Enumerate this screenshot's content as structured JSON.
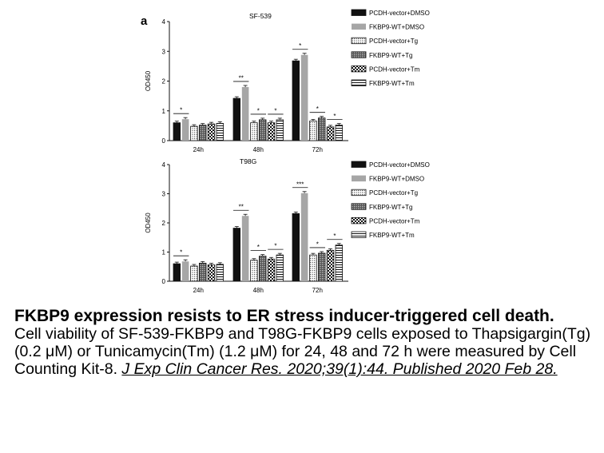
{
  "panel_label": "a",
  "colors": {
    "solid_black": "#111111",
    "solid_gray": "#a6a6a6",
    "stroke": "#111111"
  },
  "chart_data": [
    {
      "type": "bar",
      "title": "SF-539",
      "xlabel": "",
      "ylabel": "OD450",
      "ylim": [
        0,
        4
      ],
      "yticks": [
        "0",
        "1",
        "2",
        "3",
        "4"
      ],
      "categories": [
        "24h",
        "48h",
        "72h"
      ],
      "legend_position": "right",
      "series": [
        {
          "name": "PCDH-vector+DMSO",
          "values": [
            0.6,
            1.42,
            2.68
          ],
          "pattern": "solid-black"
        },
        {
          "name": "FKBP9-WT+DMSO",
          "values": [
            0.72,
            1.8,
            2.88
          ],
          "pattern": "solid-gray"
        },
        {
          "name": "PCDH-vector+Tg",
          "values": [
            0.48,
            0.6,
            0.66
          ],
          "pattern": "dots"
        },
        {
          "name": "FKBP9-WT+Tg",
          "values": [
            0.52,
            0.7,
            0.76
          ],
          "pattern": "dense-grid"
        },
        {
          "name": "PCDH-vector+Tm",
          "values": [
            0.56,
            0.6,
            0.46
          ],
          "pattern": "checker"
        },
        {
          "name": "FKBP9-WT+Tm",
          "values": [
            0.58,
            0.7,
            0.52
          ],
          "pattern": "hlines"
        }
      ],
      "annotations": [
        {
          "group": 0,
          "from": 0,
          "to": 1,
          "text": "*"
        },
        {
          "group": 1,
          "from": 0,
          "to": 1,
          "text": "**"
        },
        {
          "group": 1,
          "from": 2,
          "to": 3,
          "text": "*"
        },
        {
          "group": 1,
          "from": 4,
          "to": 5,
          "text": "*"
        },
        {
          "group": 2,
          "from": 0,
          "to": 1,
          "text": "*"
        },
        {
          "group": 2,
          "from": 2,
          "to": 3,
          "text": "*"
        },
        {
          "group": 2,
          "from": 4,
          "to": 5,
          "text": "*"
        }
      ]
    },
    {
      "type": "bar",
      "title": "T98G",
      "xlabel": "",
      "ylabel": "OD450",
      "ylim": [
        0,
        4
      ],
      "yticks": [
        "0",
        "1",
        "2",
        "3",
        "4"
      ],
      "categories": [
        "24h",
        "48h",
        "72h"
      ],
      "legend_position": "right",
      "series": [
        {
          "name": "PCDH-vector+DMSO",
          "values": [
            0.6,
            1.82,
            2.32
          ],
          "pattern": "solid-black"
        },
        {
          "name": "FKBP9-WT+DMSO",
          "values": [
            0.68,
            2.24,
            3.02
          ],
          "pattern": "solid-gray"
        },
        {
          "name": "PCDH-vector+Tg",
          "values": [
            0.52,
            0.72,
            0.9
          ],
          "pattern": "dots"
        },
        {
          "name": "FKBP9-WT+Tg",
          "values": [
            0.62,
            0.86,
            0.96
          ],
          "pattern": "dense-grid"
        },
        {
          "name": "PCDH-vector+Tm",
          "values": [
            0.56,
            0.76,
            1.06
          ],
          "pattern": "checker"
        },
        {
          "name": "FKBP9-WT+Tm",
          "values": [
            0.58,
            0.9,
            1.24
          ],
          "pattern": "hlines"
        }
      ],
      "annotations": [
        {
          "group": 0,
          "from": 0,
          "to": 1,
          "text": "*"
        },
        {
          "group": 1,
          "from": 0,
          "to": 1,
          "text": "**"
        },
        {
          "group": 1,
          "from": 2,
          "to": 3,
          "text": "*"
        },
        {
          "group": 1,
          "from": 4,
          "to": 5,
          "text": "*"
        },
        {
          "group": 2,
          "from": 0,
          "to": 1,
          "text": "***"
        },
        {
          "group": 2,
          "from": 2,
          "to": 3,
          "text": "*"
        },
        {
          "group": 2,
          "from": 4,
          "to": 5,
          "text": "*"
        }
      ]
    }
  ],
  "caption": {
    "title": "FKBP9 expression resists to ER stress inducer-triggered cell death.",
    "body": "Cell viability of SF-539-FKBP9 and T98G-FKBP9 cells exposed to Thapsigargin(Tg) (0.2 μM) or Tunicamycin(Tm) (1.2 μM) for 24, 48 and 72 h were measured by Cell Counting Kit-8. ",
    "citation": "J Exp Clin Cancer Res. 2020;39(1):44. Published 2020 Feb 28."
  }
}
